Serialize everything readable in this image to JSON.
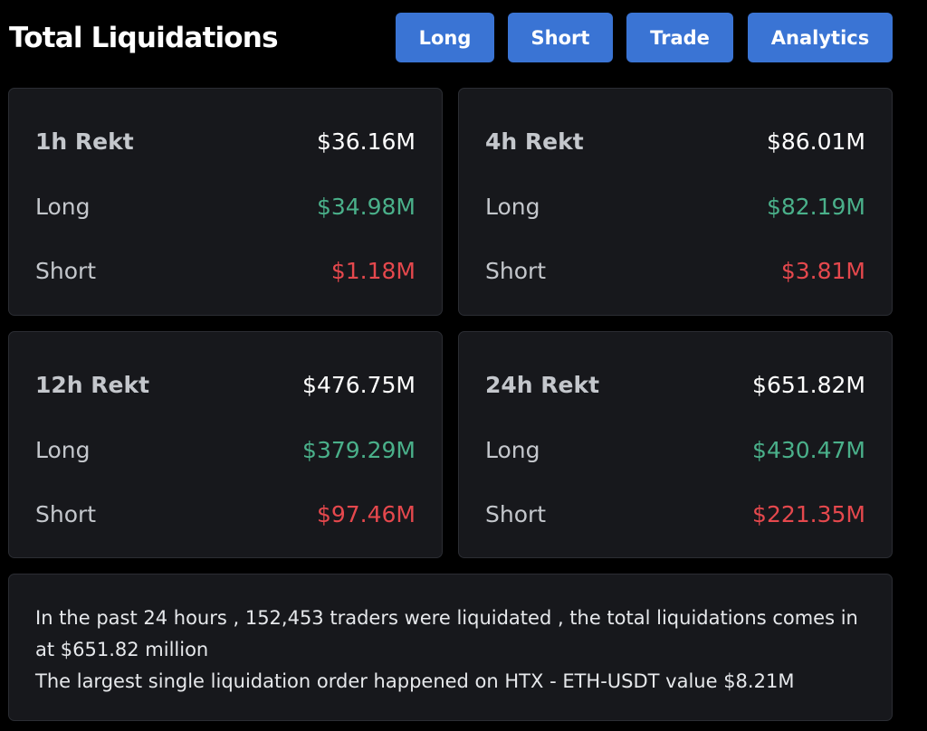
{
  "header": {
    "title": "Total Liquidations",
    "buttons": {
      "long": "Long",
      "short": "Short",
      "trade": "Trade",
      "analytics": "Analytics"
    }
  },
  "cards": {
    "h1": {
      "label": "1h Rekt",
      "total": "$36.16M",
      "long_label": "Long",
      "long": "$34.98M",
      "short_label": "Short",
      "short": "$1.18M"
    },
    "h4": {
      "label": "4h Rekt",
      "total": "$86.01M",
      "long_label": "Long",
      "long": "$82.19M",
      "short_label": "Short",
      "short": "$3.81M"
    },
    "h12": {
      "label": "12h Rekt",
      "total": "$476.75M",
      "long_label": "Long",
      "long": "$379.29M",
      "short_label": "Short",
      "short": "$97.46M"
    },
    "h24": {
      "label": "24h Rekt",
      "total": "$651.82M",
      "long_label": "Long",
      "long": "$430.47M",
      "short_label": "Short",
      "short": "$221.35M"
    }
  },
  "summary": {
    "line1": "In the past 24 hours , 152,453 traders were liquidated , the total liquidations comes in at $651.82 million",
    "line2": "The largest single liquidation order happened on HTX - ETH-USDT value $8.21M"
  },
  "colors": {
    "background": "#000000",
    "card": "#17181c",
    "button": "#3a74d4",
    "long": "#4ab08a",
    "short": "#e5484d"
  }
}
